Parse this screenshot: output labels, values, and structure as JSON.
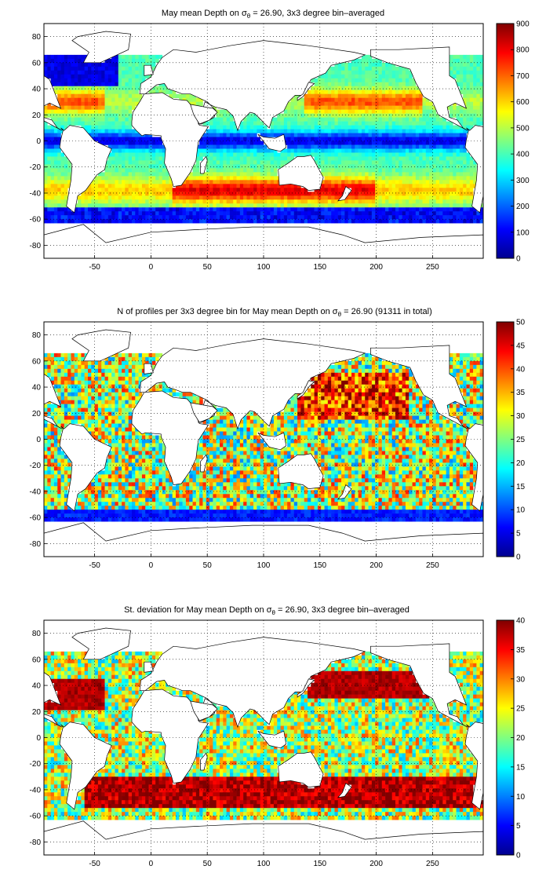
{
  "panels": [
    {
      "id": "depth",
      "title_pre": "May mean Depth on σ",
      "title_sub": "θ",
      "title_post": " = 26.90, 3x3 degree bin–averaged",
      "colorbar": {
        "ticks": [
          "0",
          "100",
          "200",
          "300",
          "400",
          "500",
          "600",
          "700",
          "800",
          "900"
        ],
        "min": 0,
        "max": 900
      }
    },
    {
      "id": "count",
      "title_pre": "N of profiles per 3x3 degree bin for May mean Depth on σ",
      "title_sub": "θ",
      "title_post": " = 26.90 (91311 in total)",
      "colorbar": {
        "ticks": [
          "0",
          "5",
          "10",
          "15",
          "20",
          "25",
          "30",
          "35",
          "40",
          "45",
          "50"
        ],
        "min": 0,
        "max": 50
      }
    },
    {
      "id": "stdev",
      "title_pre": "St. deviation for May mean Depth on σ",
      "title_sub": "θ",
      "title_post": " = 26.90, 3x3 degree bin–averaged",
      "colorbar": {
        "ticks": [
          "0",
          "5",
          "10",
          "15",
          "20",
          "25",
          "30",
          "35",
          "40"
        ],
        "min": 0,
        "max": 40
      }
    }
  ],
  "axes": {
    "x_ticks": [
      "-50",
      "0",
      "50",
      "100",
      "150",
      "200",
      "250"
    ],
    "x_values": [
      -50,
      0,
      50,
      100,
      150,
      200,
      250
    ],
    "y_ticks": [
      "80",
      "60",
      "40",
      "20",
      "0",
      "-20",
      "-40",
      "-60",
      "-80"
    ],
    "y_values": [
      80,
      60,
      40,
      20,
      0,
      -20,
      -40,
      -60,
      -80
    ],
    "xlim": [
      -95,
      295
    ],
    "ylim": [
      -90,
      90
    ],
    "bin_size_deg": 3,
    "grid": "dotted"
  },
  "colormap": "jet"
}
